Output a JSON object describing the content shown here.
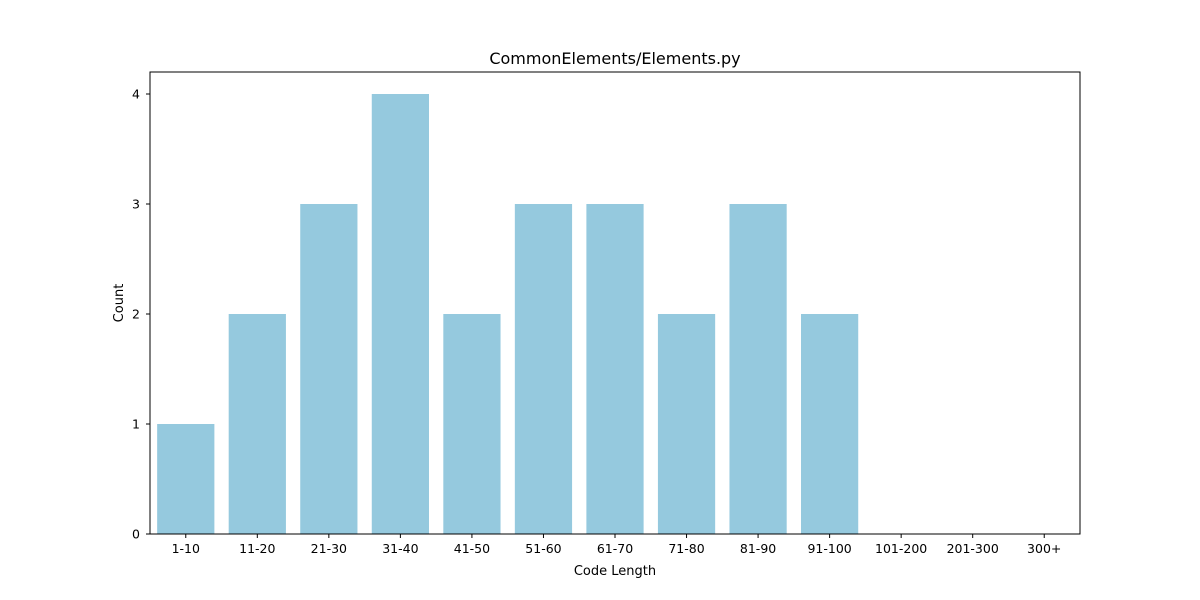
{
  "chart_data": {
    "type": "bar",
    "title": "CommonElements/Elements.py",
    "xlabel": "Code Length",
    "ylabel": "Count",
    "categories": [
      "1-10",
      "11-20",
      "21-30",
      "31-40",
      "41-50",
      "51-60",
      "61-70",
      "71-80",
      "81-90",
      "91-100",
      "101-200",
      "201-300",
      "300+"
    ],
    "values": [
      1,
      2,
      3,
      4,
      2,
      3,
      3,
      2,
      3,
      2,
      0,
      0,
      0
    ],
    "ylim": [
      0,
      4.2
    ],
    "yticks": [
      0,
      1,
      2,
      3,
      4
    ],
    "grid": false,
    "bar_color": "#95c9de"
  }
}
